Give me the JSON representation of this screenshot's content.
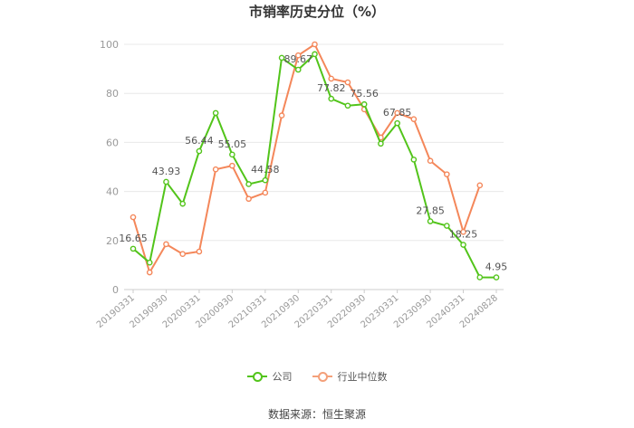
{
  "chart_data": {
    "type": "line",
    "title": "市销率历史分位（%）",
    "source": "数据来源：恒生聚源",
    "ylim": [
      0,
      100
    ],
    "yticks": [
      0,
      20,
      40,
      60,
      80,
      100
    ],
    "grid": true,
    "legend_position": "bottom",
    "x_tick_labels": [
      "20190331",
      "20190930",
      "20200331",
      "20200930",
      "20210331",
      "20210930",
      "20220331",
      "20220930",
      "20230331",
      "20230930",
      "20240331",
      "20240828"
    ],
    "x": [
      "20190331",
      "20190630",
      "20190930",
      "20191231",
      "20200331",
      "20200630",
      "20200930",
      "20201231",
      "20210331",
      "20210630",
      "20210930",
      "20211231",
      "20220331",
      "20220630",
      "20220930",
      "20221231",
      "20230331",
      "20230630",
      "20230930",
      "20231231",
      "20240331",
      "20240630",
      "20240828"
    ],
    "series": [
      {
        "name": "公司",
        "color": "#52c41a",
        "values": [
          16.65,
          11,
          43.93,
          35,
          56.44,
          72,
          55.05,
          43,
          44.58,
          94.5,
          89.67,
          96,
          77.82,
          75,
          75.56,
          59.5,
          67.85,
          53,
          27.85,
          26,
          18.25,
          5,
          4.95
        ],
        "labels": {
          "0": "16.65",
          "2": "43.93",
          "4": "56.44",
          "6": "55.05",
          "8": "44.58",
          "10": "89.67",
          "12": "77.82",
          "14": "75.56",
          "16": "67.85",
          "18": "27.85",
          "20": "18.25",
          "22": "4.95"
        }
      },
      {
        "name": "行业中位数",
        "color": "#f4875a",
        "values": [
          29.5,
          7,
          18.5,
          14.5,
          15.5,
          49,
          50.5,
          37,
          39.5,
          71,
          95.5,
          100,
          86,
          84.5,
          73.5,
          62,
          72,
          69.5,
          52.5,
          47,
          23.5,
          42.5,
          null
        ]
      }
    ]
  }
}
